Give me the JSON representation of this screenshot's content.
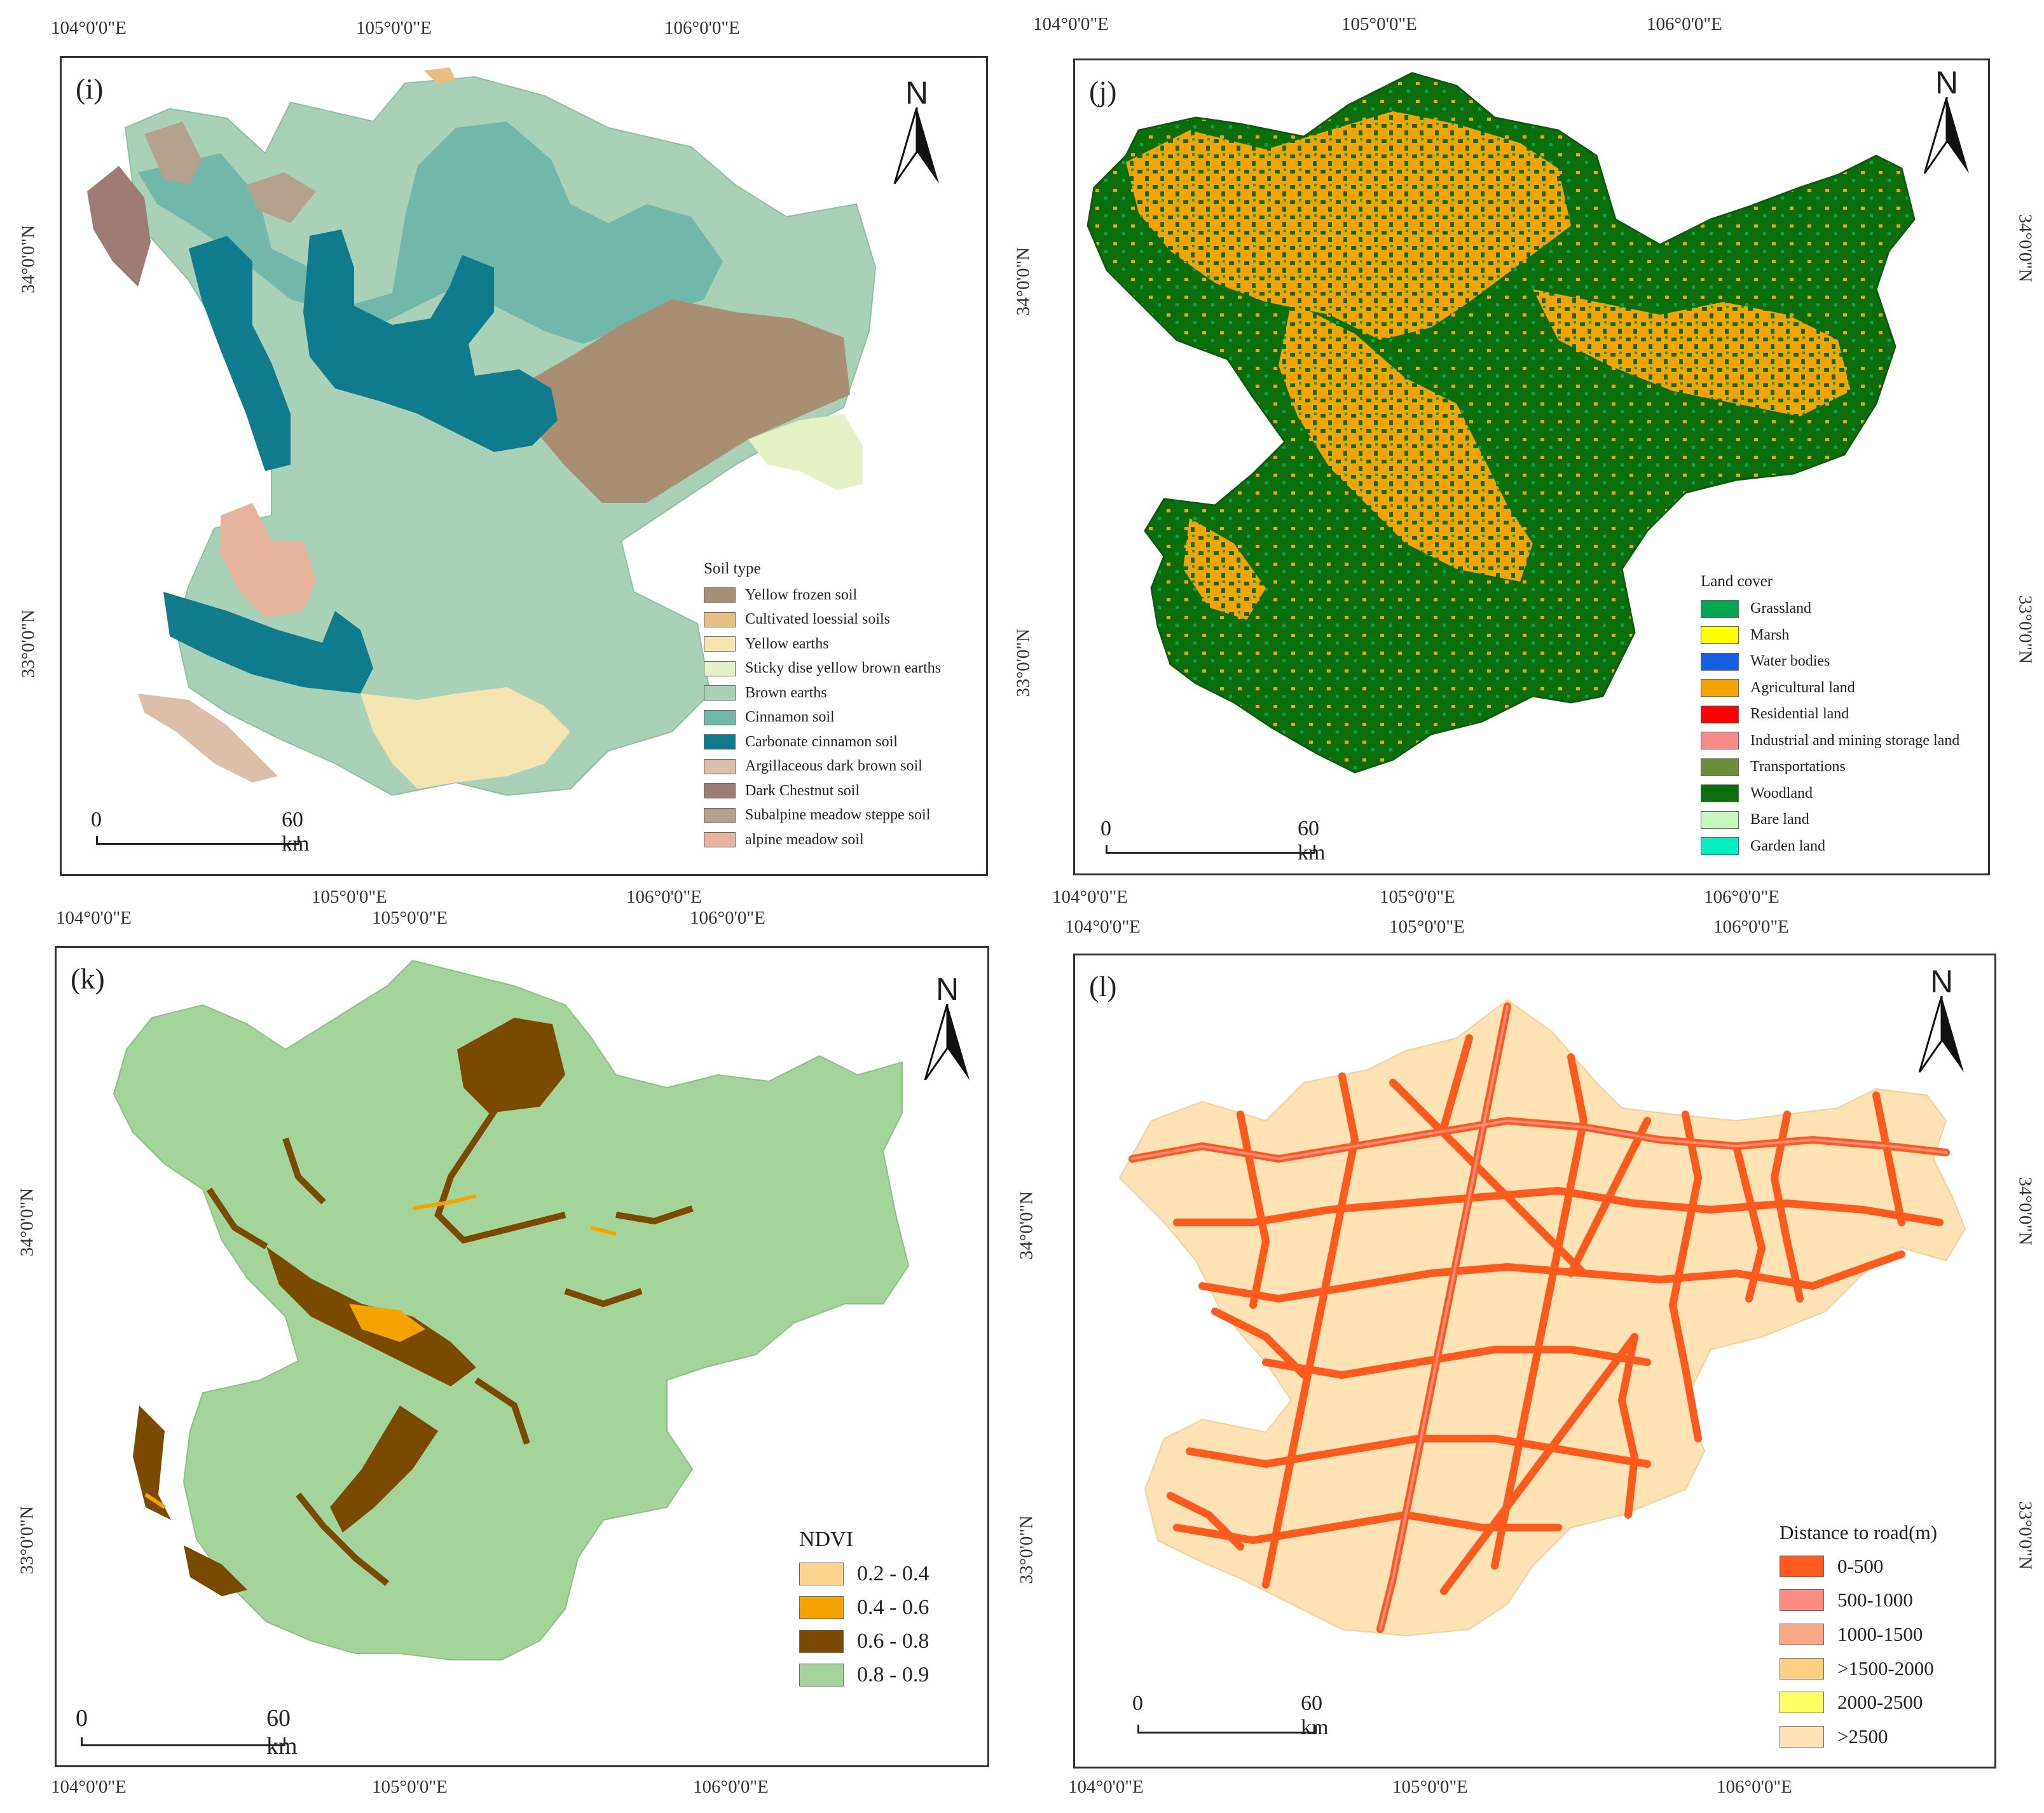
{
  "panels": {
    "i": {
      "label": "(i)",
      "north": "N",
      "scale": {
        "start": "0",
        "end": "60 km"
      },
      "top_ticks": [
        "104°0'0\"E",
        "105°0'0\"E",
        "106°0'0\"E"
      ],
      "bottom_ticks": [
        "105°0'0\"E",
        "106°0'0\"E"
      ],
      "left_ticks": [
        "34°0'0\"N",
        "33°0'0\"N"
      ],
      "legend_title": "Soil type",
      "legend": [
        {
          "label": "Yellow frozen soil",
          "color": "#a88e72"
        },
        {
          "label": "Cultivated loessial soils",
          "color": "#e8be82"
        },
        {
          "label": "Yellow earths",
          "color": "#f3e4b0"
        },
        {
          "label": "Sticky dise yellow brown earths",
          "color": "#e6f2c4"
        },
        {
          "label": "Brown earths",
          "color": "#a8d1b8"
        },
        {
          "label": "Cinnamon soil",
          "color": "#72b8aa"
        },
        {
          "label": "Carbonate cinnamon soil",
          "color": "#0f7b8c"
        },
        {
          "label": "Argillaceous dark brown soil",
          "color": "#dcbfa9"
        },
        {
          "label": "Dark Chestnut soil",
          "color": "#9e7b74"
        },
        {
          "label": "Subalpine meadow steppe soil",
          "color": "#b4a28e"
        },
        {
          "label": "alpine meadow soil",
          "color": "#e8b49e"
        }
      ]
    },
    "j": {
      "label": "(j)",
      "north": "N",
      "scale": {
        "start": "0",
        "end": "60 km"
      },
      "top_ticks": [
        "104°0'0\"E",
        "105°0'0\"E",
        "106°0'0\"E"
      ],
      "bottom_ticks": [
        "104°0'0\"E",
        "105°0'0\"E",
        "106°0'0\"E"
      ],
      "left_ticks": [
        "34°0'0\"N",
        "33°0'0\"N"
      ],
      "right_ticks": [
        "34°0'0\"N",
        "33°0'0\"N"
      ],
      "legend_title": "Land cover",
      "legend": [
        {
          "label": "Grassland",
          "color": "#00a650"
        },
        {
          "label": "Marsh",
          "color": "#ffff00"
        },
        {
          "label": "Water bodies",
          "color": "#1560e0"
        },
        {
          "label": "Agricultural land",
          "color": "#f5a300"
        },
        {
          "label": "Residential land",
          "color": "#ff0000"
        },
        {
          "label": "Industrial and mining storage land",
          "color": "#f48a8a"
        },
        {
          "label": "Transportations",
          "color": "#6b8e3a"
        },
        {
          "label": "Woodland",
          "color": "#0a6e0a"
        },
        {
          "label": "Bare land",
          "color": "#c8f5c0"
        },
        {
          "label": "Garden land",
          "color": "#00f0c0"
        }
      ]
    },
    "k": {
      "label": "(k)",
      "north": "N",
      "scale": {
        "start": "0",
        "end": "60 km"
      },
      "top_ticks": [
        "104°0'0\"E",
        "105°0'0\"E",
        "106°0'0\"E"
      ],
      "bottom_ticks": [
        "104°0'0\"E",
        "105°0'0\"E",
        "106°0'0\"E"
      ],
      "left_ticks": [
        "34°0'0\"N",
        "33°0'0\"N"
      ],
      "legend_title": "NDVI",
      "legend": [
        {
          "label": "0.2 - 0.4",
          "color": "#fcd38c"
        },
        {
          "label": "0.4 - 0.6",
          "color": "#f5a300"
        },
        {
          "label": "0.6 - 0.8",
          "color": "#7a4a00"
        },
        {
          "label": "0.8 - 0.9",
          "color": "#a3d49a"
        }
      ]
    },
    "l": {
      "label": "(l)",
      "north": "N",
      "scale": {
        "start": "0",
        "end": "60 km"
      },
      "top_ticks": [
        "104°0'0\"E",
        "105°0'0\"E",
        "106°0'0\"E"
      ],
      "bottom_ticks": [
        "104°0'0\"E",
        "105°0'0\"E",
        "106°0'0\"E"
      ],
      "left_ticks": [
        "34°0'0\"N",
        "33°0'0\"N"
      ],
      "right_ticks": [
        "34°0'0\"N",
        "33°0'0\"N"
      ],
      "legend_title": "Distance to road(m)",
      "legend": [
        {
          "label": "0-500",
          "color": "#ff5a1e"
        },
        {
          "label": "500-1000",
          "color": "#ff8a80"
        },
        {
          "label": "1000-1500",
          "color": "#f9a784"
        },
        {
          "label": ">1500-2000",
          "color": "#fdcf82"
        },
        {
          "label": "2000-2500",
          "color": "#ffff66"
        },
        {
          "label": ">2500",
          "color": "#ffe3b4"
        }
      ]
    }
  }
}
